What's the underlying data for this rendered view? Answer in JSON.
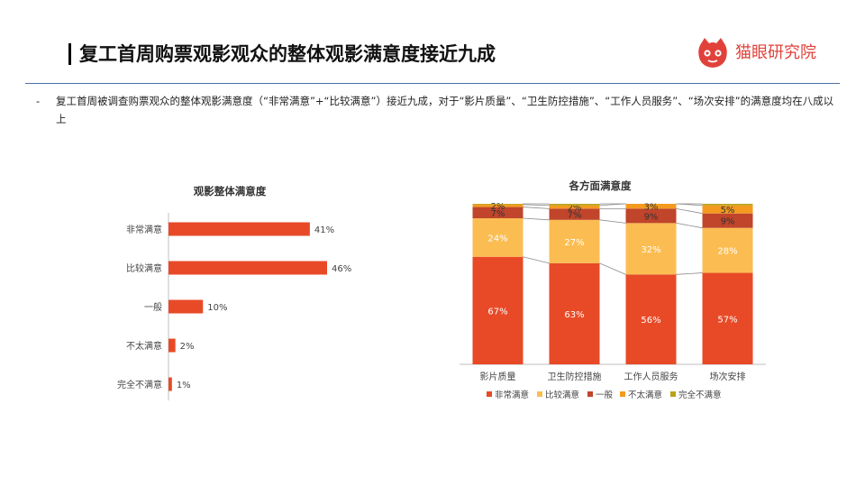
{
  "header": {
    "title": "复工首周购票观影观众的整体观影满意度接近九成",
    "brand_name": "猫眼研究院"
  },
  "summary": {
    "bullet": "-",
    "text": "复工首周被调查购票观众的整体观影满意度（“非常满意”+“比较满意”）接近九成，对于“影片质量”、“卫生防控措施”、“工作人员服务”、“场次安排”的满意度均在八成以上"
  },
  "colors": {
    "accent": "#e84a27",
    "brand": "#e0423b",
    "rule": "#4a6fa5"
  },
  "chart_data": [
    {
      "type": "bar",
      "orientation": "horizontal",
      "title": "观影整体满意度",
      "categories": [
        "非常满意",
        "比较满意",
        "一般",
        "不太满意",
        "完全不满意"
      ],
      "values": [
        41,
        46,
        10,
        2,
        1
      ],
      "labels": [
        "41%",
        "46%",
        "10%",
        "2%",
        "1%"
      ],
      "xlim": [
        0,
        50
      ],
      "color": "#e84a27",
      "grid": false,
      "legend": "none"
    },
    {
      "type": "bar",
      "stacked": true,
      "title": "各方面满意度",
      "categories": [
        "影片质量",
        "卫生防控措施",
        "工作人员服务",
        "场次安排"
      ],
      "ylim": [
        0,
        100
      ],
      "series": [
        {
          "name": "非常满意",
          "values": [
            67,
            63,
            56,
            57
          ],
          "labels": [
            "67%",
            "63%",
            "56%",
            "57%"
          ],
          "color": "#e84a27"
        },
        {
          "name": "比较满意",
          "values": [
            24,
            27,
            32,
            28
          ],
          "labels": [
            "24%",
            "27%",
            "32%",
            "28%"
          ],
          "color": "#fbbd52"
        },
        {
          "name": "一般",
          "values": [
            7,
            7,
            9,
            9
          ],
          "labels": [
            "7%",
            "7%",
            "9%",
            "9%"
          ],
          "color": "#c0452b"
        },
        {
          "name": "不太满意",
          "values": [
            1.5,
            2,
            3,
            5
          ],
          "labels": [
            "2%",
            "2%",
            "3%",
            "5%"
          ],
          "color": "#f39a1f"
        },
        {
          "name": "完全不满意",
          "values": [
            0.5,
            1,
            0,
            1
          ],
          "labels": [
            "",
            "",
            "",
            ""
          ],
          "color": "#b8a318"
        }
      ],
      "series_lines": true,
      "grid": false,
      "legend": "bottom"
    }
  ]
}
